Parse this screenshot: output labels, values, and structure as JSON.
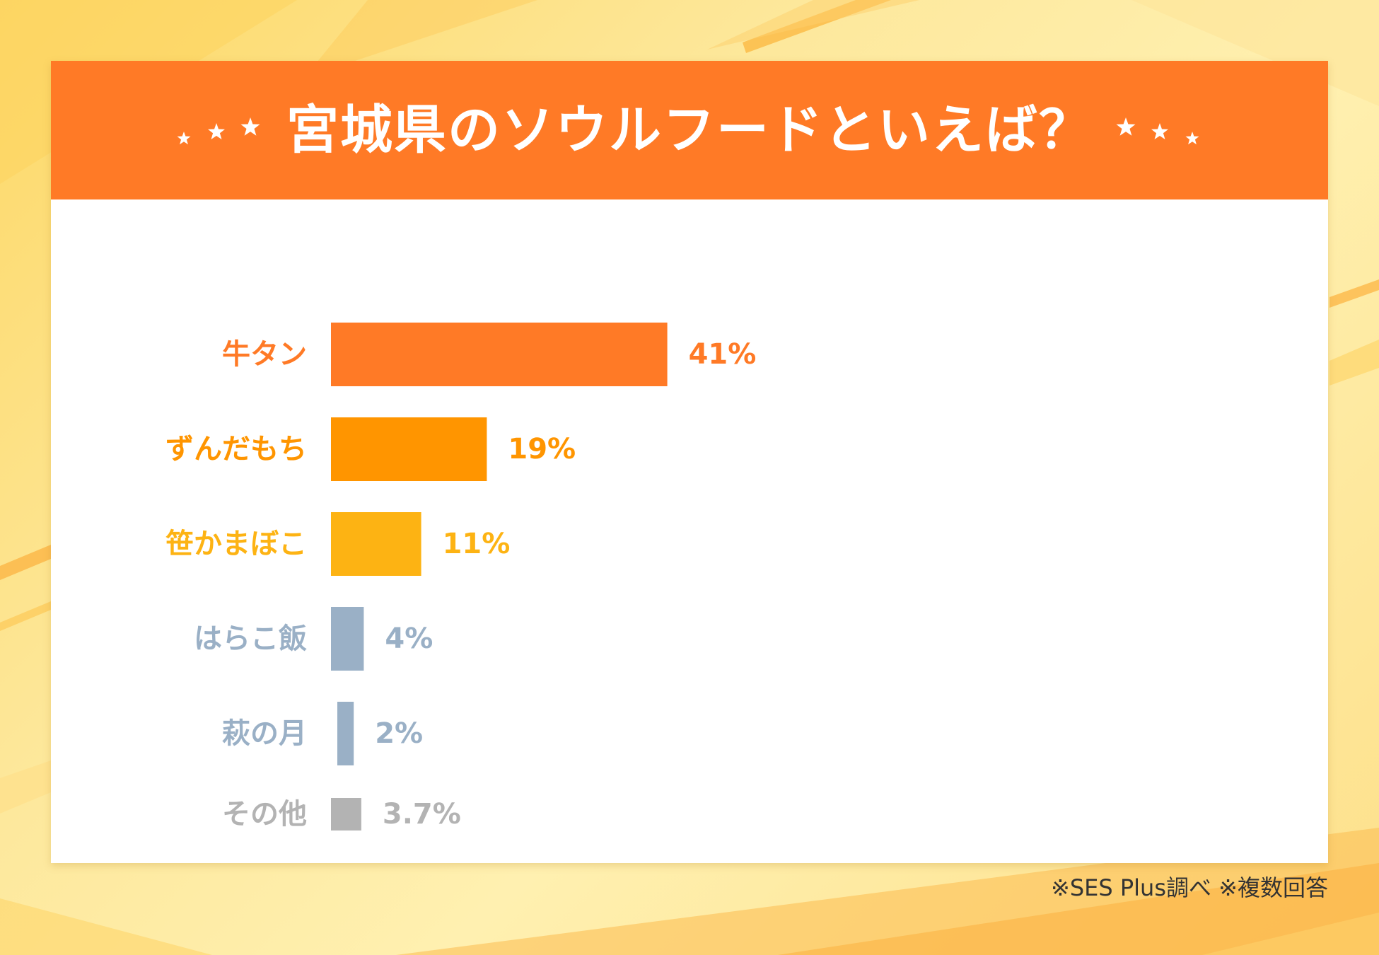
{
  "page": {
    "footnote": "※SES Plus調べ ※複数回答"
  },
  "chart_data": {
    "type": "bar",
    "orientation": "horizontal",
    "title": "宮城県のソウルフードといえば？",
    "categories": [
      "牛タン",
      "ずんだもち",
      "笹かまぼこ",
      "はらこ飯",
      "萩の月",
      "その他"
    ],
    "values": [
      41,
      19,
      11,
      4,
      2,
      3.7
    ],
    "value_labels": [
      "41%",
      "19%",
      "11%",
      "4%",
      "2%",
      "3.7%"
    ],
    "colors": [
      "#ff7a26",
      "#ff9500",
      "#fdb313",
      "#9ab0c6",
      "#9ab0c6",
      "#b3b3b3"
    ],
    "xlabel": "",
    "ylabel": "",
    "grid": false,
    "legend": "none",
    "unit": "%"
  },
  "colors": {
    "header": "#ff7a26",
    "background": "#fde9a2"
  }
}
